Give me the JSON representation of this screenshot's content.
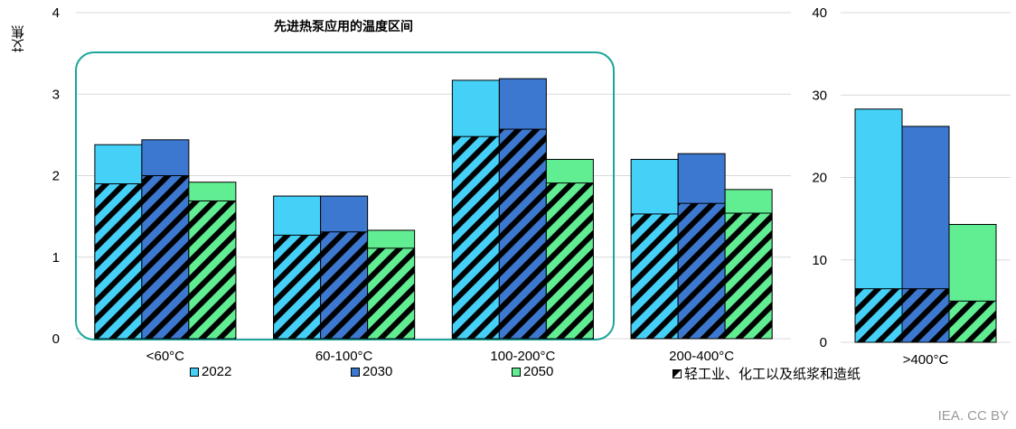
{
  "chart_data": [
    {
      "type": "bar",
      "stacked_overlay": true,
      "ylabel": "艾焦",
      "ylim": [
        0,
        4
      ],
      "yticks": [
        0,
        1,
        2,
        3,
        4
      ],
      "categories": [
        "<60°C",
        "60-100°C",
        "100-200°C",
        "200-400°C"
      ],
      "series": [
        {
          "name": "2022",
          "color": "#45d0f8",
          "totals": [
            2.38,
            1.75,
            3.17,
            2.2
          ],
          "light_industry": [
            1.9,
            1.27,
            2.48,
            1.53
          ]
        },
        {
          "name": "2030",
          "color": "#3c78d0",
          "totals": [
            2.44,
            1.75,
            3.19,
            2.27
          ],
          "light_industry": [
            2.0,
            1.31,
            2.57,
            1.66
          ]
        },
        {
          "name": "2050",
          "color": "#61ee93",
          "totals": [
            1.92,
            1.33,
            2.2,
            1.83
          ],
          "light_industry": [
            1.69,
            1.11,
            1.91,
            1.54
          ]
        }
      ],
      "annotation": {
        "text": "先进热泵应用的温度区间",
        "color": "#1aa69a",
        "spans_categories": [
          "<60°C",
          "60-100°C",
          "100-200°C"
        ]
      }
    },
    {
      "type": "bar",
      "stacked_overlay": true,
      "ylim": [
        0,
        40
      ],
      "yticks": [
        0,
        10,
        20,
        30,
        40
      ],
      "categories": [
        ">400°C"
      ],
      "series": [
        {
          "name": "2022",
          "color": "#45d0f8",
          "totals": [
            28.3
          ],
          "light_industry": [
            6.5
          ]
        },
        {
          "name": "2030",
          "color": "#3c78d0",
          "totals": [
            26.2
          ],
          "light_industry": [
            6.5
          ]
        },
        {
          "name": "2050",
          "color": "#61ee93",
          "totals": [
            14.3
          ],
          "light_industry": [
            5.0
          ]
        }
      ]
    }
  ],
  "legend": {
    "items": [
      "2022",
      "2030",
      "2050"
    ],
    "hatched_label": "轻工业、化工以及纸浆和造纸"
  },
  "credit": "IEA. CC BY"
}
